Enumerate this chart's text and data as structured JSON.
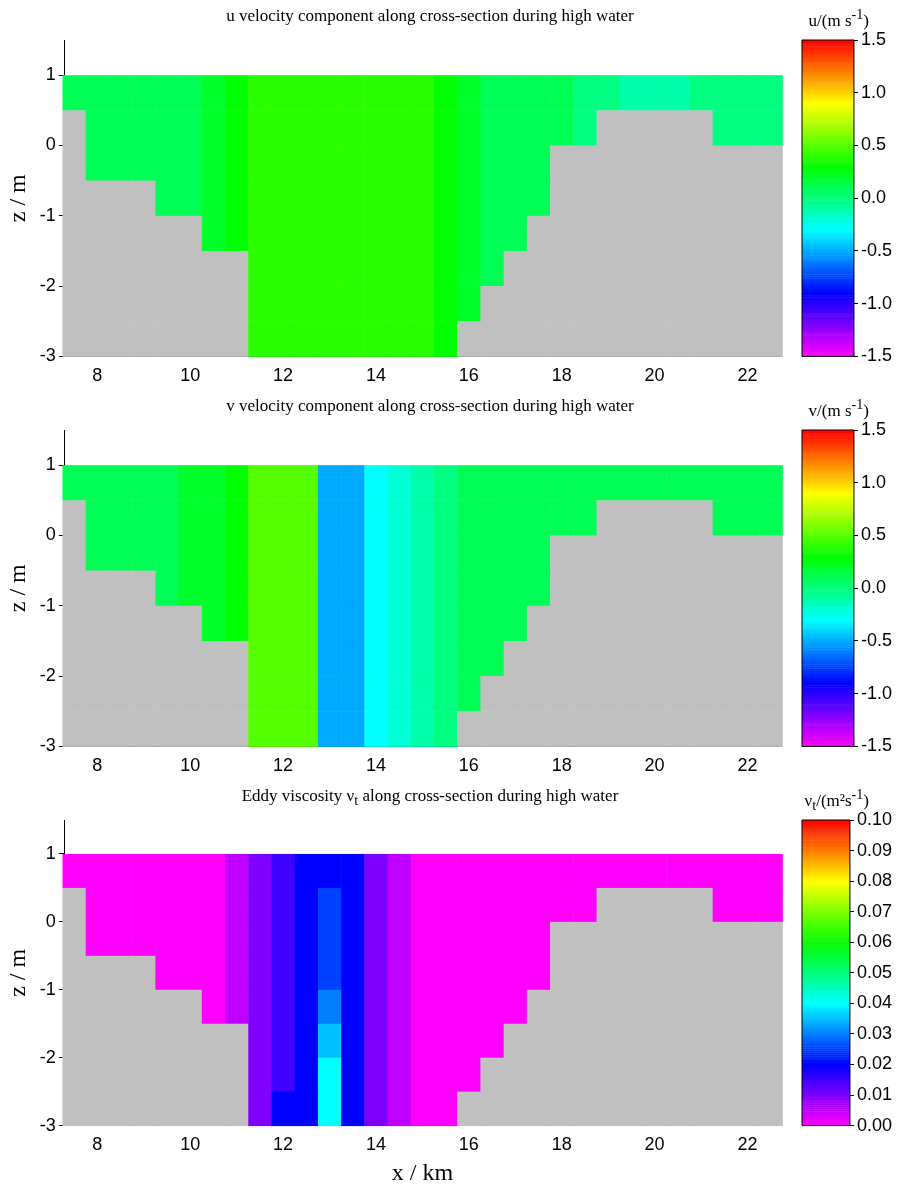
{
  "chart_data": [
    {
      "type": "heatmap",
      "title": "u velocity component along cross-section during high water",
      "clabel": "u/(m s$^{-1}$)",
      "ylabel": "z / m",
      "x": [
        7.5,
        8,
        8.5,
        9,
        9.5,
        10,
        10.5,
        11,
        11.5,
        12,
        12.5,
        13,
        13.5,
        14,
        14.5,
        15,
        15.5,
        16,
        16.5,
        17,
        17.5,
        18,
        18.5,
        19,
        19.5,
        20,
        20.5,
        21,
        21.5,
        22,
        22.5
      ],
      "y": [
        0.75,
        0.25,
        -0.25,
        -0.75,
        -1.25,
        -1.75,
        -2.25,
        -2.75
      ],
      "cells": [
        [
          0.1,
          0.1,
          0.1,
          0.1,
          0.1,
          0.1,
          0.2,
          0.3,
          0.4,
          0.4,
          0.4,
          0.4,
          0.4,
          0.4,
          0.4,
          0.4,
          0.3,
          0.2,
          0.1,
          0.1,
          0.1,
          0.1,
          0,
          0,
          -0.1,
          -0.1,
          -0.1,
          0,
          0,
          0,
          0
        ],
        [
          null,
          0.1,
          0.1,
          0.1,
          0.1,
          0.1,
          0.2,
          0.3,
          0.4,
          0.4,
          0.4,
          0.4,
          0.4,
          0.4,
          0.4,
          0.4,
          0.3,
          0.2,
          0.1,
          0.1,
          0.1,
          0.1,
          0,
          null,
          null,
          null,
          null,
          null,
          0,
          0,
          0
        ],
        [
          null,
          0.1,
          0.1,
          0.1,
          0.1,
          0.1,
          0.2,
          0.3,
          0.4,
          0.4,
          0.4,
          0.4,
          0.4,
          0.4,
          0.4,
          0.4,
          0.3,
          0.2,
          0.1,
          0.1,
          0.1,
          null,
          null,
          null,
          null,
          null,
          null,
          null,
          null,
          null,
          null
        ],
        [
          null,
          null,
          null,
          null,
          0.1,
          0.1,
          0.2,
          0.3,
          0.4,
          0.4,
          0.4,
          0.4,
          0.4,
          0.4,
          0.4,
          0.4,
          0.3,
          0.2,
          0.1,
          0.1,
          0.1,
          null,
          null,
          null,
          null,
          null,
          null,
          null,
          null,
          null,
          null
        ],
        [
          null,
          null,
          null,
          null,
          null,
          null,
          0.2,
          0.3,
          0.4,
          0.4,
          0.4,
          0.4,
          0.4,
          0.4,
          0.4,
          0.4,
          0.3,
          0.2,
          0.1,
          0.1,
          null,
          null,
          null,
          null,
          null,
          null,
          null,
          null,
          null,
          null,
          null
        ],
        [
          null,
          null,
          null,
          null,
          null,
          null,
          null,
          null,
          0.4,
          0.4,
          0.4,
          0.4,
          0.4,
          0.4,
          0.4,
          0.4,
          0.3,
          0.2,
          0.1,
          null,
          null,
          null,
          null,
          null,
          null,
          null,
          null,
          null,
          null,
          null,
          null
        ],
        [
          null,
          null,
          null,
          null,
          null,
          null,
          null,
          null,
          0.4,
          0.4,
          0.4,
          0.4,
          0.4,
          0.4,
          0.4,
          0.4,
          0.3,
          0.2,
          null,
          null,
          null,
          null,
          null,
          null,
          null,
          null,
          null,
          null,
          null,
          null,
          null
        ],
        [
          null,
          null,
          null,
          null,
          null,
          null,
          null,
          null,
          0.4,
          0.4,
          0.4,
          0.4,
          0.4,
          0.4,
          0.4,
          0.4,
          0.3,
          null,
          null,
          null,
          null,
          null,
          null,
          null,
          null,
          null,
          null,
          null,
          null,
          null,
          null
        ]
      ],
      "xlim": [
        7.3,
        22.7
      ],
      "xticks": [
        8,
        10,
        12,
        14,
        16,
        18,
        20,
        22
      ],
      "ylim": [
        -3,
        1.5
      ],
      "yticks": [
        -3,
        -2,
        -1,
        0,
        1
      ],
      "clim": [
        -1.5,
        1.5
      ],
      "cticks": [
        {
          "value": -1.5,
          "label": "-1.5"
        },
        {
          "value": -1,
          "label": "-1.0"
        },
        {
          "value": -0.5,
          "label": "-0.5"
        },
        {
          "value": 0,
          "label": "0.0"
        },
        {
          "value": 0.5,
          "label": "0.5"
        },
        {
          "value": 1,
          "label": "1.0"
        },
        {
          "value": 1.5,
          "label": "1.5"
        }
      ]
    },
    {
      "type": "heatmap",
      "title": "v velocity component along cross-section during high water",
      "clabel": "v/(m s$^{-1}$)",
      "ylabel": "z / m",
      "x": [
        7.5,
        8,
        8.5,
        9,
        9.5,
        10,
        10.5,
        11,
        11.5,
        12,
        12.5,
        13,
        13.5,
        14,
        14.5,
        15,
        15.5,
        16,
        16.5,
        17,
        17.5,
        18,
        18.5,
        19,
        19.5,
        20,
        20.5,
        21,
        21.5,
        22,
        22.5
      ],
      "y": [
        0.75,
        0.25,
        -0.25,
        -0.75,
        -1.25,
        -1.75,
        -2.25,
        -2.75
      ],
      "cells": [
        [
          0.1,
          0.1,
          0.1,
          0.1,
          0.1,
          0.2,
          0.2,
          0.3,
          0.5,
          0.5,
          0.5,
          -0.5,
          -0.5,
          -0.3,
          -0.2,
          -0.1,
          0,
          0.1,
          0.1,
          0.1,
          0.1,
          0.1,
          0.1,
          0.1,
          0.1,
          0.1,
          0.1,
          0.1,
          0.1,
          0.1,
          0.1
        ],
        [
          null,
          0.1,
          0.1,
          0.1,
          0.1,
          0.2,
          0.2,
          0.3,
          0.5,
          0.5,
          0.5,
          -0.5,
          -0.5,
          -0.3,
          -0.2,
          -0.1,
          0,
          0.1,
          0.1,
          0.1,
          0.1,
          0.1,
          0.1,
          null,
          null,
          null,
          null,
          null,
          0.1,
          0.1,
          0.1
        ],
        [
          null,
          0.1,
          0.1,
          0.1,
          0.1,
          0.2,
          0.2,
          0.3,
          0.5,
          0.5,
          0.5,
          -0.5,
          -0.5,
          -0.3,
          -0.2,
          -0.1,
          0,
          0.1,
          0.1,
          0.1,
          0.1,
          null,
          null,
          null,
          null,
          null,
          null,
          null,
          null,
          null,
          null
        ],
        [
          null,
          null,
          null,
          null,
          0.1,
          0.2,
          0.2,
          0.3,
          0.5,
          0.5,
          0.5,
          -0.5,
          -0.5,
          -0.3,
          -0.2,
          -0.1,
          0,
          0.1,
          0.1,
          0.1,
          0.1,
          null,
          null,
          null,
          null,
          null,
          null,
          null,
          null,
          null,
          null
        ],
        [
          null,
          null,
          null,
          null,
          null,
          null,
          0.2,
          0.3,
          0.5,
          0.5,
          0.5,
          -0.5,
          -0.5,
          -0.3,
          -0.2,
          -0.1,
          0,
          0.1,
          0.1,
          0.1,
          null,
          null,
          null,
          null,
          null,
          null,
          null,
          null,
          null,
          null,
          null
        ],
        [
          null,
          null,
          null,
          null,
          null,
          null,
          null,
          null,
          0.5,
          0.5,
          0.5,
          -0.5,
          -0.5,
          -0.3,
          -0.2,
          -0.1,
          0,
          0.1,
          0.1,
          null,
          null,
          null,
          null,
          null,
          null,
          null,
          null,
          null,
          null,
          null,
          null
        ],
        [
          null,
          null,
          null,
          null,
          null,
          null,
          null,
          null,
          0.5,
          0.5,
          0.5,
          -0.5,
          -0.5,
          -0.3,
          -0.2,
          -0.1,
          0,
          0.1,
          null,
          null,
          null,
          null,
          null,
          null,
          null,
          null,
          null,
          null,
          null,
          null,
          null
        ],
        [
          null,
          null,
          null,
          null,
          null,
          null,
          null,
          null,
          0.5,
          0.5,
          0.5,
          -0.5,
          -0.5,
          -0.3,
          -0.2,
          -0.1,
          0,
          null,
          null,
          null,
          null,
          null,
          null,
          null,
          null,
          null,
          null,
          null,
          null,
          null,
          null
        ]
      ],
      "xlim": [
        7.3,
        22.7
      ],
      "xticks": [
        8,
        10,
        12,
        14,
        16,
        18,
        20,
        22
      ],
      "ylim": [
        -3,
        1.5
      ],
      "yticks": [
        -3,
        -2,
        -1,
        0,
        1
      ],
      "clim": [
        -1.5,
        1.5
      ],
      "cticks": [
        {
          "value": -1.5,
          "label": "-1.5"
        },
        {
          "value": -1,
          "label": "-1.0"
        },
        {
          "value": -0.5,
          "label": "-0.5"
        },
        {
          "value": 0,
          "label": "0.0"
        },
        {
          "value": 0.5,
          "label": "0.5"
        },
        {
          "value": 1,
          "label": "1.0"
        },
        {
          "value": 1.5,
          "label": "1.5"
        }
      ]
    },
    {
      "type": "heatmap",
      "title": "Eddy viscosity ν$_{t}$ along cross-section during high water",
      "clabel": "ν$_{t}$/(m²s$^{-1}$)",
      "ylabel": "z / m",
      "xlabel": "x / km",
      "x": [
        7.5,
        8,
        8.5,
        9,
        9.5,
        10,
        10.5,
        11,
        11.5,
        12,
        12.5,
        13,
        13.5,
        14,
        14.5,
        15,
        15.5,
        16,
        16.5,
        17,
        17.5,
        18,
        18.5,
        19,
        19.5,
        20,
        20.5,
        21,
        21.5,
        22,
        22.5
      ],
      "y": [
        0.75,
        0.25,
        -0.25,
        -0.75,
        -1.25,
        -1.75,
        -2.25,
        -2.75
      ],
      "cells": [
        [
          0,
          0,
          0,
          0,
          0,
          0,
          0,
          0.005,
          0.01,
          0.015,
          0.02,
          0.02,
          0.02,
          0.01,
          0.005,
          0,
          0,
          0,
          0,
          0,
          0,
          0,
          0,
          0,
          0,
          0,
          0,
          0,
          0,
          0,
          0
        ],
        [
          null,
          0,
          0,
          0,
          0,
          0,
          0,
          0.005,
          0.01,
          0.015,
          0.02,
          0.025,
          0.02,
          0.01,
          0.005,
          0,
          0,
          0,
          0,
          0,
          0,
          0,
          0,
          null,
          null,
          null,
          null,
          null,
          0,
          0,
          0
        ],
        [
          null,
          0,
          0,
          0,
          0,
          0,
          0,
          0.005,
          0.01,
          0.015,
          0.02,
          0.025,
          0.02,
          0.01,
          0.005,
          0,
          0,
          0,
          0,
          0,
          0,
          null,
          null,
          null,
          null,
          null,
          null,
          null,
          null,
          null,
          null
        ],
        [
          null,
          null,
          null,
          null,
          0,
          0,
          0,
          0.005,
          0.01,
          0.015,
          0.02,
          0.025,
          0.02,
          0.01,
          0.005,
          0,
          0,
          0,
          0,
          0,
          0,
          null,
          null,
          null,
          null,
          null,
          null,
          null,
          null,
          null,
          null
        ],
        [
          null,
          null,
          null,
          null,
          null,
          null,
          0,
          0.005,
          0.01,
          0.015,
          0.02,
          0.03,
          0.02,
          0.01,
          0.005,
          0,
          0,
          0,
          0,
          0,
          null,
          null,
          null,
          null,
          null,
          null,
          null,
          null,
          null,
          null,
          null
        ],
        [
          null,
          null,
          null,
          null,
          null,
          null,
          null,
          null,
          0.01,
          0.015,
          0.02,
          0.035,
          0.02,
          0.01,
          0.005,
          0,
          0,
          0,
          0,
          null,
          null,
          null,
          null,
          null,
          null,
          null,
          null,
          null,
          null,
          null,
          null
        ],
        [
          null,
          null,
          null,
          null,
          null,
          null,
          null,
          null,
          0.01,
          0.015,
          0.02,
          0.04,
          0.02,
          0.01,
          0.005,
          0,
          0,
          0,
          null,
          null,
          null,
          null,
          null,
          null,
          null,
          null,
          null,
          null,
          null,
          null,
          null
        ],
        [
          null,
          null,
          null,
          null,
          null,
          null,
          null,
          null,
          0.01,
          0.02,
          0.02,
          0.04,
          0.02,
          0.01,
          0.005,
          0,
          0,
          null,
          null,
          null,
          null,
          null,
          null,
          null,
          null,
          null,
          null,
          null,
          null,
          null,
          null
        ]
      ],
      "xlim": [
        7.3,
        22.7
      ],
      "xticks": [
        8,
        10,
        12,
        14,
        16,
        18,
        20,
        22
      ],
      "ylim": [
        -3,
        1.5
      ],
      "yticks": [
        -3,
        -2,
        -1,
        0,
        1
      ],
      "clim": [
        0,
        0.1
      ],
      "cticks": [
        {
          "value": 0,
          "label": "0.00"
        },
        {
          "value": 0.01,
          "label": "0.01"
        },
        {
          "value": 0.02,
          "label": "0.02"
        },
        {
          "value": 0.03,
          "label": "0.03"
        },
        {
          "value": 0.04,
          "label": "0.04"
        },
        {
          "value": 0.05,
          "label": "0.05"
        },
        {
          "value": 0.06,
          "label": "0.06"
        },
        {
          "value": 0.07,
          "label": "0.07"
        },
        {
          "value": 0.08,
          "label": "0.08"
        },
        {
          "value": 0.09,
          "label": "0.09"
        },
        {
          "value": 0.1,
          "label": "0.10"
        }
      ]
    }
  ]
}
